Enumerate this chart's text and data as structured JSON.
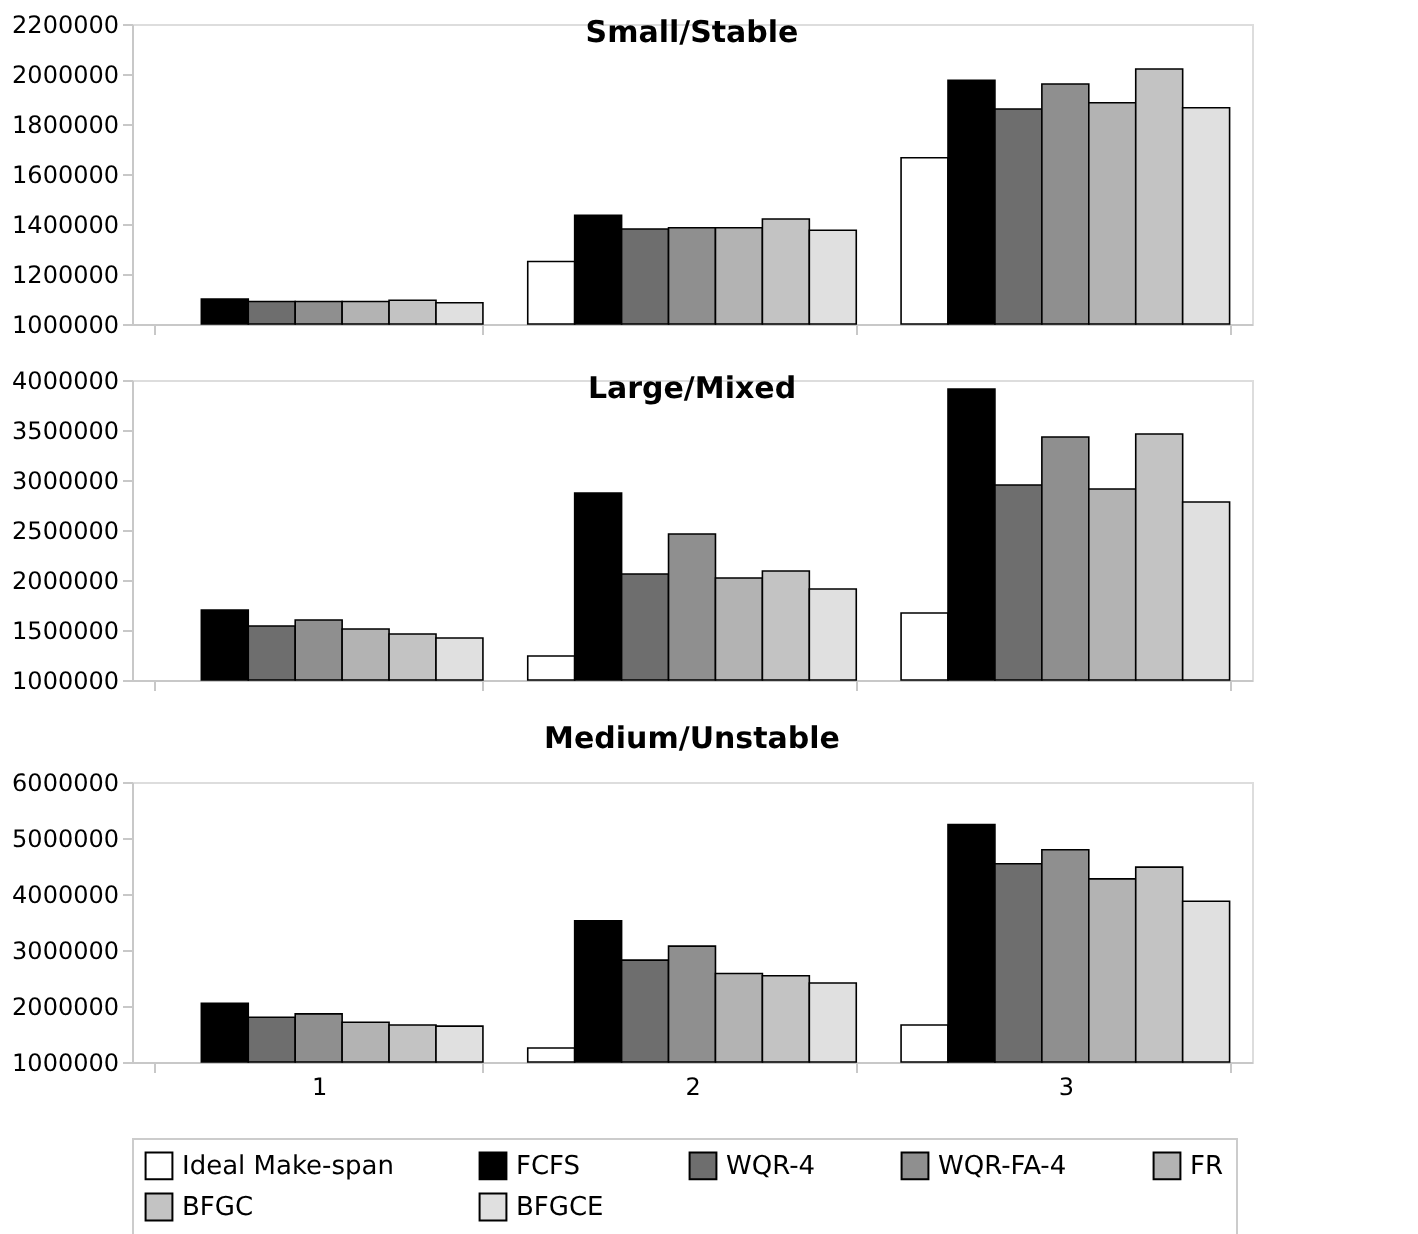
{
  "chart_data": [
    {
      "type": "bar",
      "title": "Small/Stable",
      "categories": [
        "1",
        "2",
        "3"
      ],
      "ylim": [
        1000000,
        2200000
      ],
      "yticks": [
        1000000,
        1200000,
        1400000,
        1600000,
        1800000,
        2000000,
        2200000
      ],
      "tick_labels": "y",
      "grid": false,
      "legend": false,
      "series": [
        {
          "color": "#ffffff",
          "values": [
            null,
            1250000,
            1665000
          ]
        },
        {
          "color": "#000000",
          "values": [
            1100000,
            1435000,
            1975000
          ]
        },
        {
          "color": "#6e6e6e",
          "values": [
            1090000,
            1380000,
            1860000
          ]
        },
        {
          "color": "#8f8f8f",
          "values": [
            1090000,
            1385000,
            1960000
          ]
        },
        {
          "color": "#b3b3b3",
          "values": [
            1090000,
            1385000,
            1885000
          ]
        },
        {
          "color": "#c3c3c3",
          "values": [
            1095000,
            1420000,
            2020000
          ]
        },
        {
          "color": "#e0e0e0",
          "values": [
            1085000,
            1375000,
            1865000
          ]
        }
      ]
    },
    {
      "type": "bar",
      "title": "Large/Mixed",
      "categories": [
        "1",
        "2",
        "3"
      ],
      "ylim": [
        1000000,
        4000000
      ],
      "yticks": [
        1000000,
        1500000,
        2000000,
        2500000,
        3000000,
        3500000,
        4000000
      ],
      "tick_labels": "y",
      "grid": false,
      "legend": false,
      "series": [
        {
          "color": "#ffffff",
          "values": [
            null,
            1240000,
            1670000
          ]
        },
        {
          "color": "#000000",
          "values": [
            1700000,
            2870000,
            3910000
          ]
        },
        {
          "color": "#6e6e6e",
          "values": [
            1540000,
            2060000,
            2950000
          ]
        },
        {
          "color": "#8f8f8f",
          "values": [
            1600000,
            2460000,
            3430000
          ]
        },
        {
          "color": "#b3b3b3",
          "values": [
            1510000,
            2020000,
            2910000
          ]
        },
        {
          "color": "#c3c3c3",
          "values": [
            1460000,
            2090000,
            3460000
          ]
        },
        {
          "color": "#e0e0e0",
          "values": [
            1420000,
            1910000,
            2780000
          ]
        }
      ]
    },
    {
      "type": "bar",
      "title": "Medium/Unstable",
      "categories": [
        "1",
        "2",
        "3"
      ],
      "ylim": [
        1000000,
        6000000
      ],
      "yticks": [
        1000000,
        2000000,
        3000000,
        4000000,
        5000000,
        6000000
      ],
      "grid": false,
      "legend": "bottom",
      "series": [
        {
          "name": "Ideal Make-span",
          "color": "#ffffff",
          "values": [
            null,
            1250000,
            1660000
          ]
        },
        {
          "name": "FCFS",
          "color": "#000000",
          "values": [
            2050000,
            3520000,
            5240000
          ]
        },
        {
          "name": "WQR-4",
          "color": "#6e6e6e",
          "values": [
            1800000,
            2820000,
            4540000
          ]
        },
        {
          "name": "WQR-FA-4",
          "color": "#8f8f8f",
          "values": [
            1860000,
            3070000,
            4790000
          ]
        },
        {
          "name": "FR",
          "color": "#b3b3b3",
          "values": [
            1710000,
            2580000,
            4270000
          ]
        },
        {
          "name": "BFGC",
          "color": "#c3c3c3",
          "values": [
            1660000,
            2540000,
            4480000
          ]
        },
        {
          "name": "BFGCE",
          "color": "#e0e0e0",
          "values": [
            1640000,
            2410000,
            3870000
          ]
        }
      ]
    }
  ]
}
